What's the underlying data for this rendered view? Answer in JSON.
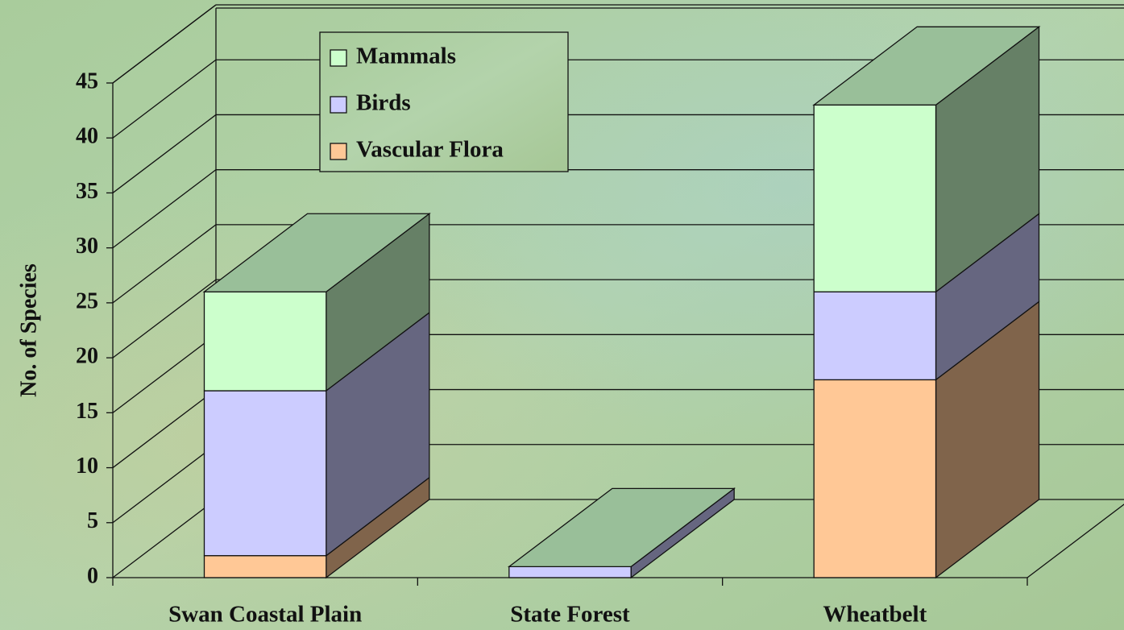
{
  "chart_data": {
    "type": "bar3d_stacked",
    "y_label": "No. of Species",
    "categories": [
      "Swan Coastal Plain",
      "State Forest",
      "Wheatbelt"
    ],
    "series": [
      {
        "name": "Vascular Flora",
        "color": "#ffc896",
        "values": [
          2,
          0,
          18
        ]
      },
      {
        "name": "Birds",
        "color": "#ccccff",
        "values": [
          15,
          1,
          8
        ]
      },
      {
        "name": "Mammals",
        "color": "#ccffcc",
        "values": [
          9,
          0,
          17
        ]
      }
    ],
    "ylim": [
      0,
      45
    ],
    "yticks": [
      0,
      5,
      10,
      15,
      20,
      25,
      30,
      35,
      40,
      45
    ],
    "grid": true,
    "legend": "top-left"
  }
}
